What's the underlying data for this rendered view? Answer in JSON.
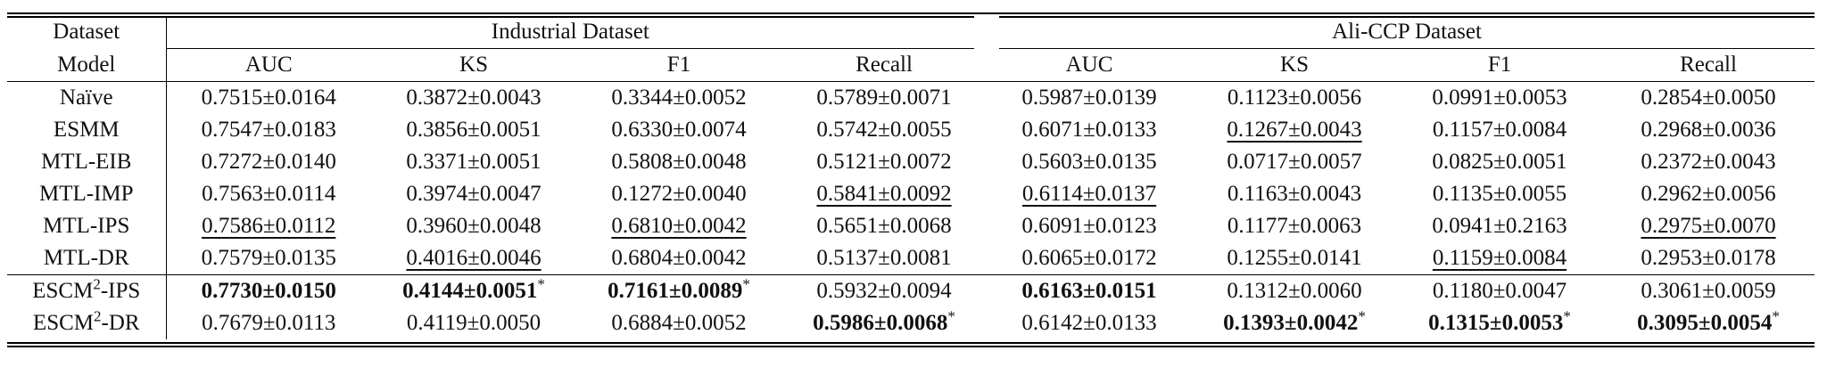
{
  "header": {
    "dataset_label": "Dataset",
    "model_label": "Model",
    "groups": [
      "Industrial Dataset",
      "Ali-CCP Dataset"
    ],
    "metrics": [
      "AUC",
      "KS",
      "F1",
      "Recall",
      "AUC",
      "KS",
      "F1",
      "Recall"
    ]
  },
  "rows": [
    {
      "model": "Naïve",
      "sup": "",
      "cells": [
        "0.7515±0.0164",
        "0.3872±0.0043",
        "0.3344±0.0052",
        "0.5789±0.0071",
        "0.5987±0.0139",
        "0.1123±0.0056",
        "0.0991±0.0053",
        "0.2854±0.0050"
      ],
      "style": [
        "",
        "",
        "",
        "",
        "",
        "",
        "",
        ""
      ]
    },
    {
      "model": "ESMM",
      "sup": "",
      "cells": [
        "0.7547±0.0183",
        "0.3856±0.0051",
        "0.6330±0.0074",
        "0.5742±0.0055",
        "0.6071±0.0133",
        "0.1267±0.0043",
        "0.1157±0.0084",
        "0.2968±0.0036"
      ],
      "style": [
        "",
        "",
        "",
        "",
        "",
        "u",
        "",
        ""
      ]
    },
    {
      "model": "MTL-EIB",
      "sup": "",
      "cells": [
        "0.7272±0.0140",
        "0.3371±0.0051",
        "0.5808±0.0048",
        "0.5121±0.0072",
        "0.5603±0.0135",
        "0.0717±0.0057",
        "0.0825±0.0051",
        "0.2372±0.0043"
      ],
      "style": [
        "",
        "",
        "",
        "",
        "",
        "",
        "",
        ""
      ]
    },
    {
      "model": "MTL-IMP",
      "sup": "",
      "cells": [
        "0.7563±0.0114",
        "0.3974±0.0047",
        "0.1272±0.0040",
        "0.5841±0.0092",
        "0.6114±0.0137",
        "0.1163±0.0043",
        "0.1135±0.0055",
        "0.2962±0.0056"
      ],
      "style": [
        "",
        "",
        "",
        "u",
        "u",
        "",
        "",
        ""
      ]
    },
    {
      "model": "MTL-IPS",
      "sup": "",
      "cells": [
        "0.7586±0.0112",
        "0.3960±0.0048",
        "0.6810±0.0042",
        "0.5651±0.0068",
        "0.6091±0.0123",
        "0.1177±0.0063",
        "0.0941±0.2163",
        "0.2975±0.0070"
      ],
      "style": [
        "u",
        "",
        "u",
        "",
        "",
        "",
        "",
        "u"
      ]
    },
    {
      "model": "MTL-DR",
      "sup": "",
      "cells": [
        "0.7579±0.0135",
        "0.4016±0.0046",
        "0.6804±0.0042",
        "0.5137±0.0081",
        "0.6065±0.0172",
        "0.1255±0.0141",
        "0.1159±0.0084",
        "0.2953±0.0178"
      ],
      "style": [
        "",
        "u",
        "",
        "",
        "",
        "",
        "u",
        ""
      ]
    },
    {
      "model": "ESCM",
      "sup": "2",
      "suffix": "-IPS",
      "cells": [
        "0.7730±0.0150",
        "0.4144±0.0051",
        "0.7161±0.0089",
        "0.5932±0.0094",
        "0.6163±0.0151",
        "0.1312±0.0060",
        "0.1180±0.0047",
        "0.3061±0.0059"
      ],
      "style": [
        "b",
        "b*",
        "b*",
        "",
        "b",
        "",
        "",
        ""
      ]
    },
    {
      "model": "ESCM",
      "sup": "2",
      "suffix": "-DR",
      "cells": [
        "0.7679±0.0113",
        "0.4119±0.0050",
        "0.6884±0.0052",
        "0.5986±0.0068",
        "0.6142±0.0133",
        "0.1393±0.0042",
        "0.1315±0.0053",
        "0.3095±0.0054"
      ],
      "style": [
        "",
        "",
        "",
        "b*",
        "",
        "b*",
        "b*",
        "b*"
      ]
    }
  ],
  "star": "*"
}
